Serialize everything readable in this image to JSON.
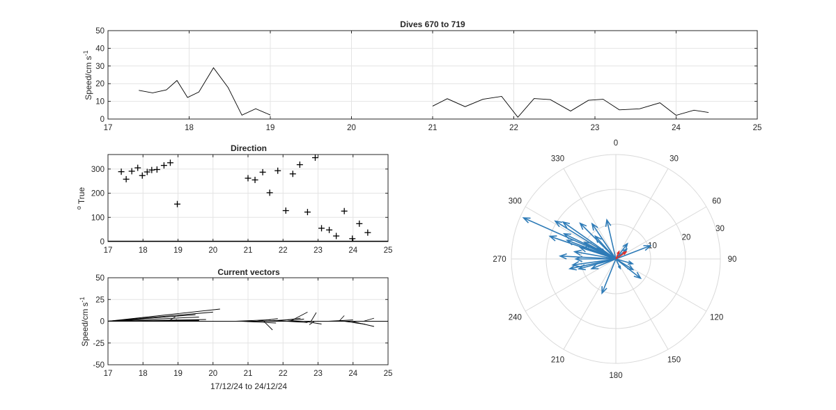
{
  "chart_data": [
    {
      "id": "speed",
      "type": "line",
      "title": "Dives 670 to 719",
      "ylabel": "Speed/cm s",
      "ylabel_sup": "-1",
      "xlim": [
        17,
        25
      ],
      "ylim": [
        0,
        50
      ],
      "xticks": [
        17,
        18,
        19,
        20,
        21,
        22,
        23,
        24,
        25
      ],
      "yticks": [
        0,
        10,
        20,
        30,
        40,
        50
      ],
      "grid": true,
      "series": [
        {
          "color": "#000000",
          "segments": [
            [
              [
                17.38,
                16.2
              ],
              [
                17.55,
                14.8
              ],
              [
                17.72,
                16.5
              ],
              [
                17.85,
                21.8
              ],
              [
                17.98,
                12.2
              ],
              [
                18.12,
                15.3
              ],
              [
                18.3,
                29.0
              ],
              [
                18.48,
                17.8
              ],
              [
                18.65,
                2.2
              ],
              [
                18.82,
                5.8
              ],
              [
                19.0,
                2.3
              ]
            ],
            [
              [
                21.0,
                7.3
              ],
              [
                21.18,
                11.5
              ],
              [
                21.4,
                7.0
              ],
              [
                21.62,
                11.2
              ],
              [
                21.85,
                12.8
              ],
              [
                22.05,
                1.0
              ],
              [
                22.25,
                11.6
              ],
              [
                22.45,
                11.0
              ],
              [
                22.7,
                4.5
              ],
              [
                22.92,
                10.6
              ],
              [
                23.1,
                11.2
              ],
              [
                23.3,
                5.2
              ],
              [
                23.55,
                5.8
              ],
              [
                23.8,
                9.2
              ],
              [
                24.0,
                2.1
              ],
              [
                24.22,
                5.0
              ],
              [
                24.4,
                3.7
              ]
            ]
          ]
        }
      ]
    },
    {
      "id": "direction",
      "type": "scatter",
      "title": "Direction",
      "ylabel": "True",
      "ylabel_prefix": "o",
      "xlim": [
        17,
        25
      ],
      "ylim": [
        0,
        360
      ],
      "xticks": [
        17,
        18,
        19,
        20,
        21,
        22,
        23,
        24,
        25
      ],
      "yticks": [
        0,
        100,
        200,
        300
      ],
      "grid": true,
      "marker": "+",
      "series": [
        {
          "color": "#000000",
          "x": [
            17.38,
            17.52,
            17.68,
            17.85,
            17.98,
            18.12,
            18.25,
            18.4,
            18.6,
            18.78,
            18.98,
            21.0,
            21.2,
            21.42,
            21.62,
            21.85,
            22.08,
            22.28,
            22.48,
            22.7,
            22.92,
            23.1,
            23.32,
            23.52,
            23.75,
            23.98,
            24.18,
            24.42
          ],
          "y": [
            289,
            258,
            291,
            305,
            273,
            288,
            296,
            298,
            315,
            326,
            155,
            262,
            255,
            287,
            202,
            293,
            128,
            280,
            318,
            122,
            347,
            55,
            48,
            23,
            126,
            12,
            74,
            37
          ]
        }
      ]
    },
    {
      "id": "vectors",
      "type": "quiver",
      "title": "Current vectors",
      "ylabel": "Speed/cm s",
      "ylabel_sup": "-1",
      "xlabel": "17/12/24 to 24/12/24",
      "xlim": [
        17,
        25
      ],
      "ylim": [
        -50,
        50
      ],
      "xticks": [
        17,
        18,
        19,
        20,
        21,
        22,
        23,
        24,
        25
      ],
      "yticks": [
        -50,
        -25,
        0,
        25,
        50
      ],
      "grid": true,
      "vectors": [
        {
          "x": 17.0,
          "u": 3.2,
          "v": 14.0
        },
        {
          "x": 17.0,
          "u": 3.0,
          "v": 10.5
        },
        {
          "x": 17.0,
          "u": 2.5,
          "v": 7.5
        },
        {
          "x": 17.0,
          "u": 2.6,
          "v": 4.8
        },
        {
          "x": 17.0,
          "u": 2.8,
          "v": 2.0
        },
        {
          "x": 17.2,
          "u": 2.4,
          "v": 1.2
        },
        {
          "x": 17.4,
          "u": 2.2,
          "v": 0.8
        },
        {
          "x": 17.6,
          "u": 1.8,
          "v": 0.5
        },
        {
          "x": 18.72,
          "u": 0.2,
          "v": 5.0
        },
        {
          "x": 18.82,
          "u": 0.15,
          "v": 2.0
        },
        {
          "x": 20.65,
          "u": 1.0,
          "v": 1.8
        },
        {
          "x": 20.8,
          "u": 1.0,
          "v": -2.0
        },
        {
          "x": 21.25,
          "u": 0.6,
          "v": 3.0
        },
        {
          "x": 21.45,
          "u": 0.25,
          "v": -10.0
        },
        {
          "x": 21.45,
          "u": 0.8,
          "v": 2.0
        },
        {
          "x": 21.8,
          "u": 0.7,
          "v": 3.5
        },
        {
          "x": 22.1,
          "u": 0.6,
          "v": -1.5
        },
        {
          "x": 22.1,
          "u": 0.5,
          "v": 2.5
        },
        {
          "x": 22.2,
          "u": 0.5,
          "v": 10.5
        },
        {
          "x": 22.6,
          "u": 0.5,
          "v": -3.2
        },
        {
          "x": 22.8,
          "u": 0.15,
          "v": 10.0
        },
        {
          "x": 22.9,
          "u": -0.15,
          "v": -4.0
        },
        {
          "x": 23.3,
          "u": 0.7,
          "v": 1.5
        },
        {
          "x": 23.6,
          "u": 0.15,
          "v": 6.5
        },
        {
          "x": 23.75,
          "u": 0.6,
          "v": -3.5
        },
        {
          "x": 23.95,
          "u": 0.65,
          "v": -6.0
        },
        {
          "x": 24.3,
          "u": 0.3,
          "v": 3.5
        }
      ]
    },
    {
      "id": "polar",
      "type": "compass",
      "theta_ticks": [
        "0",
        "30",
        "60",
        "90",
        "120",
        "150",
        "180",
        "210",
        "240",
        "270",
        "300",
        "330"
      ],
      "r_ticks": [
        "10",
        "20",
        "30"
      ],
      "rlim": [
        0,
        30
      ],
      "colors": {
        "arrows": "#2e7bb7",
        "highlight": "#e0302b"
      },
      "arrows": [
        {
          "dir": 294,
          "speed": 29.0
        },
        {
          "dir": 302,
          "speed": 20.5
        },
        {
          "dir": 289,
          "speed": 20.0
        },
        {
          "dir": 305,
          "speed": 18.5
        },
        {
          "dir": 273,
          "speed": 16.0
        },
        {
          "dir": 296,
          "speed": 16.5
        },
        {
          "dir": 315,
          "speed": 14.5
        },
        {
          "dir": 258,
          "speed": 13.5
        },
        {
          "dir": 291,
          "speed": 15.0
        },
        {
          "dir": 262,
          "speed": 12.5
        },
        {
          "dir": 280,
          "speed": 12.0
        },
        {
          "dir": 347,
          "speed": 11.5
        },
        {
          "dir": 326,
          "speed": 12.2
        },
        {
          "dir": 255,
          "speed": 11.0
        },
        {
          "dir": 288,
          "speed": 10.8
        },
        {
          "dir": 298,
          "speed": 10.2
        },
        {
          "dir": 202,
          "speed": 10.6
        },
        {
          "dir": 69,
          "speed": 10.6
        },
        {
          "dir": 128,
          "speed": 9.0
        },
        {
          "dir": 318,
          "speed": 8.8
        },
        {
          "dir": 122,
          "speed": 5.8
        },
        {
          "dir": 270,
          "speed": 11.5
        },
        {
          "dir": 248,
          "speed": 7.5
        },
        {
          "dir": 106,
          "speed": 5.0
        },
        {
          "dir": 155,
          "speed": 3.0
        },
        {
          "dir": 37,
          "speed": 5.5
        },
        {
          "dir": 48,
          "speed": 4.2
        },
        {
          "dir": 300,
          "speed": 6.0
        }
      ],
      "highlight_arrows": [
        {
          "dir": 55,
          "speed": 3.6
        },
        {
          "dir": 23,
          "speed": 2.3
        }
      ]
    }
  ]
}
